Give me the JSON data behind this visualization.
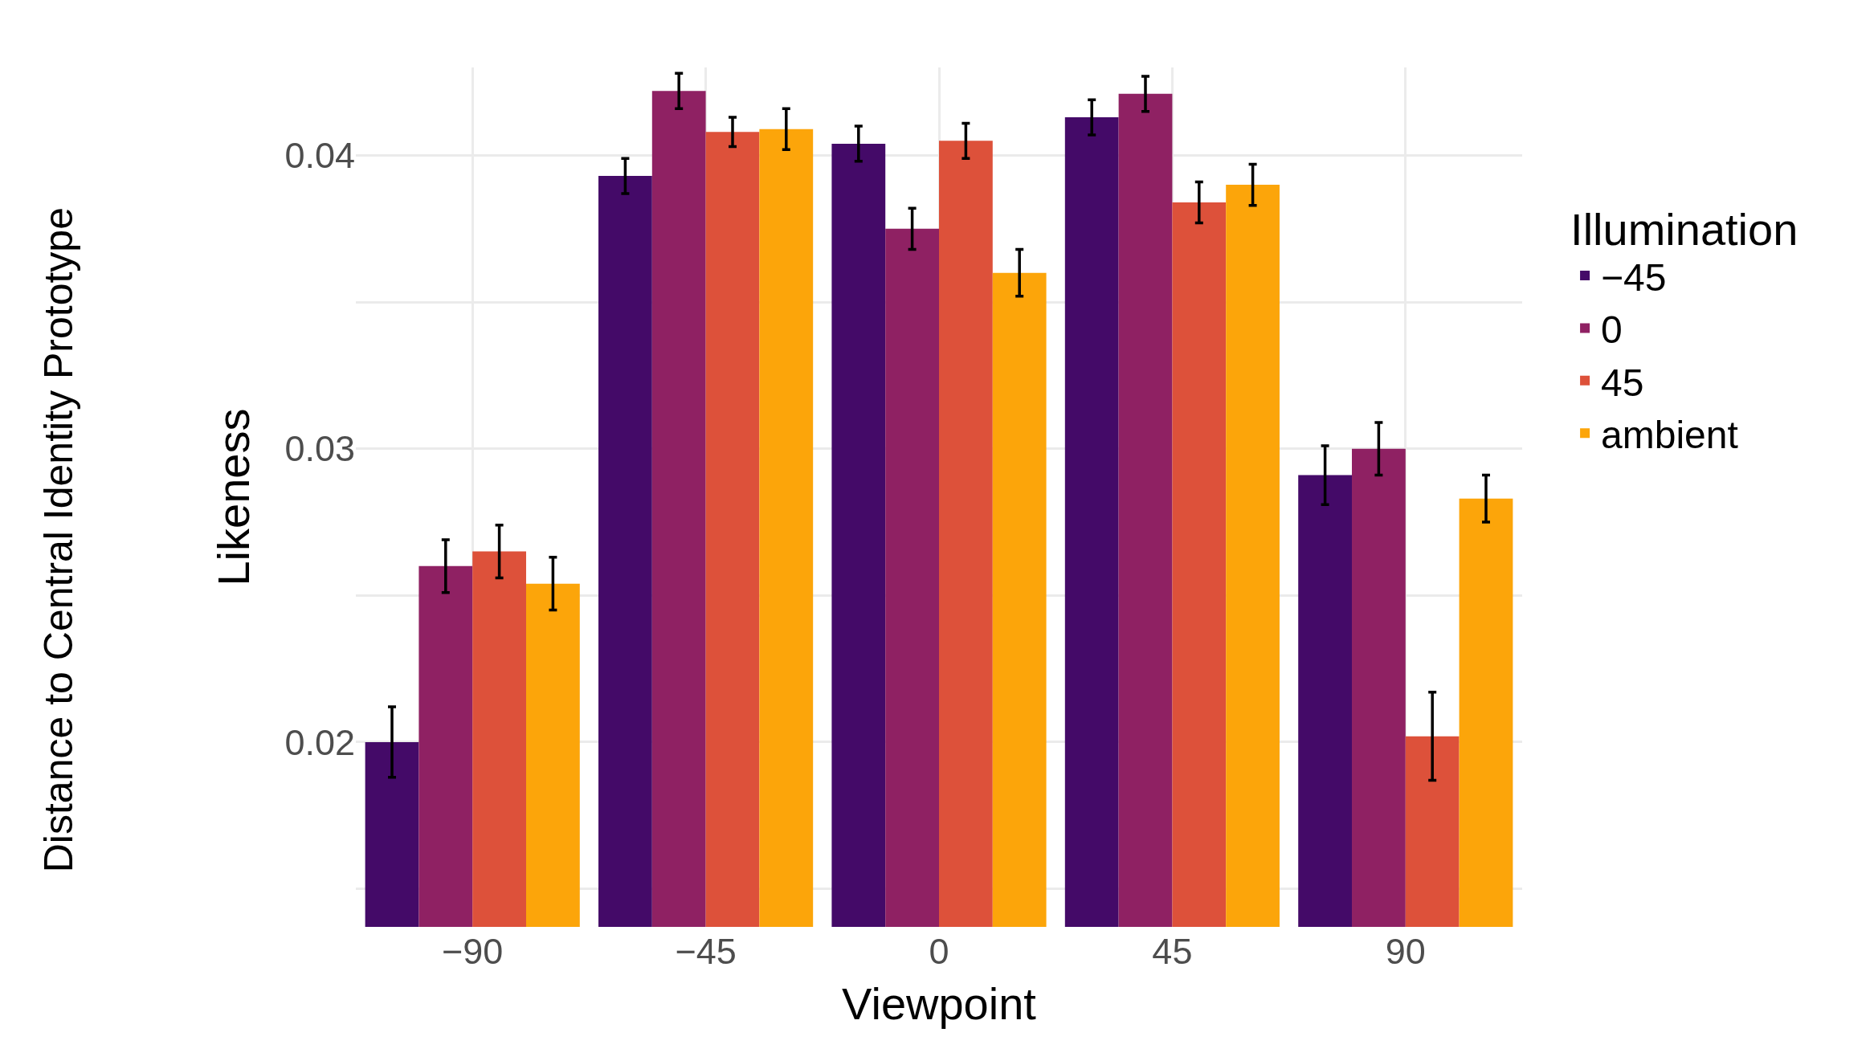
{
  "chart_data": {
    "type": "bar",
    "xlabel": "Viewpoint",
    "ylabel": "Likeness",
    "legend_title": "Illumination",
    "categories": [
      "−90",
      "−45",
      "0",
      "45",
      "90"
    ],
    "series": [
      {
        "name": "−45",
        "color": "#440a68",
        "values": [
          0.02,
          0.0393,
          0.0404,
          0.0413,
          0.0291
        ],
        "errors": [
          0.0012,
          0.0006,
          0.0006,
          0.0006,
          0.001
        ]
      },
      {
        "name": "0",
        "color": "#8f2163",
        "values": [
          0.026,
          0.0422,
          0.0375,
          0.0421,
          0.03
        ],
        "errors": [
          0.0009,
          0.0006,
          0.0007,
          0.0006,
          0.0009
        ]
      },
      {
        "name": "45",
        "color": "#dd513a",
        "values": [
          0.0265,
          0.0408,
          0.0405,
          0.0384,
          0.0202
        ],
        "errors": [
          0.0009,
          0.0005,
          0.0006,
          0.0007,
          0.0015
        ]
      },
      {
        "name": "ambient",
        "color": "#fca50a",
        "values": [
          0.0254,
          0.0409,
          0.036,
          0.039,
          0.0283
        ],
        "errors": [
          0.0009,
          0.0007,
          0.0008,
          0.0007,
          0.0008
        ]
      }
    ],
    "ylim": [
      0.0137,
      0.043
    ],
    "yticks": [
      {
        "value": 0.015,
        "label": null
      },
      0.02,
      {
        "value": 0.025,
        "label": null
      },
      0.03,
      {
        "value": 0.035,
        "label": null
      },
      0.04
    ],
    "grid": true,
    "legend": "right",
    "annotations": [
      "Distance to Central Identity Prototype"
    ]
  }
}
